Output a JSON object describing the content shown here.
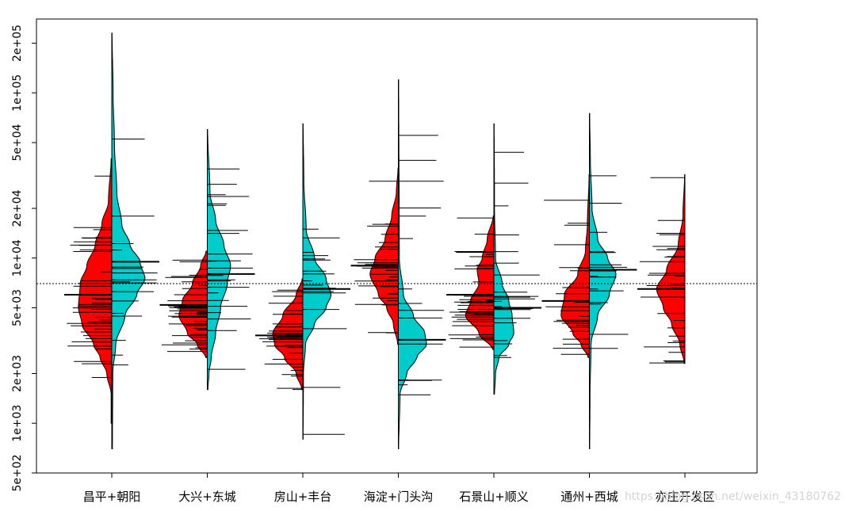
{
  "chart_data": {
    "type": "beanplot",
    "title": "",
    "xlabel": "",
    "ylabel": "",
    "log_y": true,
    "ylim": [
      500,
      280000
    ],
    "y_ticks": [
      500,
      1000,
      2000,
      5000,
      10000,
      20000,
      50000,
      100000,
      200000
    ],
    "y_tick_labels": [
      "5e+02",
      "1e+03",
      "2e+03",
      "5e+03",
      "1e+04",
      "2e+04",
      "5e+04",
      "1e+05",
      "2e+05"
    ],
    "overall_reference": 7000,
    "colors": {
      "left": "#ff0000",
      "right": "#00cccc",
      "outline": "#000000"
    },
    "categories": [
      "昌平+朝阳",
      "大兴+东城",
      "房山+丰台",
      "海淀+门头沟",
      "石景山+顺义",
      "通州+西城",
      "亦庄开发区"
    ],
    "groups": [
      {
        "label": "昌平+朝阳",
        "left": {
          "mean": 6000,
          "min": 1000,
          "max": 40000,
          "profile": [
            [
              1000,
              0.02
            ],
            [
              1500,
              0.02
            ],
            [
              2000,
              0.15
            ],
            [
              2500,
              0.35
            ],
            [
              3000,
              0.55
            ],
            [
              4000,
              0.9
            ],
            [
              5000,
              1.0
            ],
            [
              7000,
              0.95
            ],
            [
              9000,
              0.75
            ],
            [
              12000,
              0.5
            ],
            [
              16000,
              0.3
            ],
            [
              22000,
              0.1
            ],
            [
              40000,
              0.02
            ]
          ]
        },
        "right": {
          "mean": 9500,
          "min": 700,
          "max": 230000,
          "profile": [
            [
              700,
              0.02
            ],
            [
              2000,
              0.03
            ],
            [
              3000,
              0.12
            ],
            [
              4500,
              0.4
            ],
            [
              6000,
              0.75
            ],
            [
              7500,
              1.0
            ],
            [
              9500,
              0.85
            ],
            [
              12000,
              0.55
            ],
            [
              16000,
              0.3
            ],
            [
              25000,
              0.15
            ],
            [
              50000,
              0.08
            ],
            [
              100000,
              0.04
            ],
            [
              230000,
              0.01
            ]
          ]
        }
      },
      {
        "label": "大兴+东城",
        "left": {
          "mean": 5200,
          "min": 2500,
          "max": 11000,
          "profile": [
            [
              2500,
              0.05
            ],
            [
              3000,
              0.3
            ],
            [
              3500,
              0.6
            ],
            [
              4500,
              0.85
            ],
            [
              5500,
              0.75
            ],
            [
              7000,
              0.45
            ],
            [
              9000,
              0.2
            ],
            [
              11000,
              0.04
            ]
          ]
        },
        "right": {
          "mean": 8000,
          "min": 1600,
          "max": 60000,
          "profile": [
            [
              1600,
              0.02
            ],
            [
              2000,
              0.05
            ],
            [
              2500,
              0.12
            ],
            [
              3500,
              0.25
            ],
            [
              5000,
              0.4
            ],
            [
              7000,
              0.6
            ],
            [
              9000,
              0.7
            ],
            [
              12000,
              0.5
            ],
            [
              17000,
              0.25
            ],
            [
              25000,
              0.08
            ],
            [
              60000,
              0.01
            ]
          ]
        }
      },
      {
        "label": "房山+丰台",
        "left": {
          "mean": 3400,
          "min": 1600,
          "max": 7500,
          "profile": [
            [
              1600,
              0.03
            ],
            [
              2000,
              0.2
            ],
            [
              2500,
              0.55
            ],
            [
              3000,
              0.85
            ],
            [
              3500,
              0.9
            ],
            [
              4500,
              0.6
            ],
            [
              6000,
              0.2
            ],
            [
              7500,
              0.02
            ]
          ]
        },
        "right": {
          "mean": 6500,
          "min": 800,
          "max": 65000,
          "profile": [
            [
              800,
              0.01
            ],
            [
              2000,
              0.02
            ],
            [
              3000,
              0.08
            ],
            [
              4000,
              0.35
            ],
            [
              5000,
              0.7
            ],
            [
              6000,
              0.85
            ],
            [
              7500,
              0.7
            ],
            [
              10000,
              0.35
            ],
            [
              15000,
              0.1
            ],
            [
              30000,
              0.03
            ],
            [
              65000,
              0.01
            ]
          ]
        }
      },
      {
        "label": "海淀+门头沟",
        "left": {
          "mean": 9000,
          "min": 3000,
          "max": 35000,
          "profile": [
            [
              3000,
              0.02
            ],
            [
              4000,
              0.15
            ],
            [
              5000,
              0.35
            ],
            [
              6000,
              0.6
            ],
            [
              8000,
              0.85
            ],
            [
              10000,
              0.7
            ],
            [
              13000,
              0.4
            ],
            [
              18000,
              0.2
            ],
            [
              25000,
              0.06
            ],
            [
              35000,
              0.01
            ]
          ]
        },
        "right": {
          "mean": 3200,
          "min": 700,
          "max": 120000,
          "profile": [
            [
              700,
              0.01
            ],
            [
              1500,
              0.05
            ],
            [
              2000,
              0.25
            ],
            [
              2500,
              0.55
            ],
            [
              3000,
              0.85
            ],
            [
              3500,
              0.8
            ],
            [
              4500,
              0.45
            ],
            [
              6000,
              0.15
            ],
            [
              10000,
              0.03
            ],
            [
              120000,
              0.01
            ]
          ]
        }
      },
      {
        "label": "石景山+顺义",
        "left": {
          "mean": 6000,
          "min": 2800,
          "max": 18000,
          "profile": [
            [
              2800,
              0.04
            ],
            [
              3500,
              0.45
            ],
            [
              4500,
              0.85
            ],
            [
              5500,
              0.7
            ],
            [
              7000,
              0.45
            ],
            [
              8500,
              0.5
            ],
            [
              10000,
              0.35
            ],
            [
              13000,
              0.2
            ],
            [
              18000,
              0.02
            ]
          ]
        },
        "right": {
          "mean": 5000,
          "min": 1500,
          "max": 65000,
          "profile": [
            [
              1500,
              0.02
            ],
            [
              2000,
              0.05
            ],
            [
              2500,
              0.15
            ],
            [
              3000,
              0.45
            ],
            [
              3500,
              0.6
            ],
            [
              4500,
              0.55
            ],
            [
              5500,
              0.45
            ],
            [
              7000,
              0.25
            ],
            [
              10000,
              0.05
            ],
            [
              20000,
              0.02
            ],
            [
              65000,
              0.01
            ]
          ]
        }
      },
      {
        "label": "通州+西城",
        "left": {
          "mean": 5500,
          "min": 2500,
          "max": 32000,
          "profile": [
            [
              2500,
              0.04
            ],
            [
              3000,
              0.25
            ],
            [
              3500,
              0.5
            ],
            [
              4500,
              0.85
            ],
            [
              6000,
              0.75
            ],
            [
              8000,
              0.35
            ],
            [
              11000,
              0.12
            ],
            [
              16000,
              0.06
            ],
            [
              32000,
              0.01
            ]
          ]
        },
        "right": {
          "mean": 8500,
          "min": 700,
          "max": 75000,
          "profile": [
            [
              700,
              0.01
            ],
            [
              1500,
              0.02
            ],
            [
              3000,
              0.05
            ],
            [
              4500,
              0.25
            ],
            [
              6000,
              0.6
            ],
            [
              8000,
              0.8
            ],
            [
              10000,
              0.55
            ],
            [
              13000,
              0.25
            ],
            [
              20000,
              0.08
            ],
            [
              40000,
              0.03
            ],
            [
              75000,
              0.01
            ]
          ]
        }
      },
      {
        "label": "亦庄开发区",
        "left": {
          "mean": 6500,
          "min": 2300,
          "max": 32000,
          "profile": [
            [
              2300,
              0.02
            ],
            [
              3000,
              0.15
            ],
            [
              4000,
              0.4
            ],
            [
              5000,
              0.65
            ],
            [
              6500,
              0.85
            ],
            [
              8500,
              0.55
            ],
            [
              12000,
              0.2
            ],
            [
              18000,
              0.06
            ],
            [
              32000,
              0.01
            ]
          ]
        }
      }
    ]
  }
}
